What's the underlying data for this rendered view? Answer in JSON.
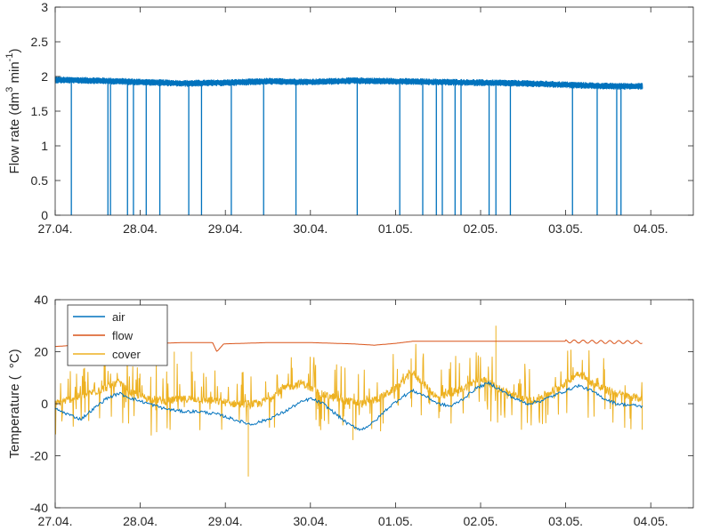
{
  "chart_data": [
    {
      "type": "line",
      "ylabel": "Flow rate (dm",
      "ylabel_sup1": "3",
      "ylabel_mid": " min",
      "ylabel_sup2": "-1",
      "ylabel_end": ")",
      "ylim": [
        0,
        3
      ],
      "yticks": [
        "0",
        "0.5",
        "1",
        "1.5",
        "2",
        "2.5",
        "3"
      ],
      "xlim": [
        0,
        7.5
      ],
      "xticks": [
        "27.04.",
        "28.04.",
        "29.04.",
        "30.04.",
        "01.05.",
        "02.05.",
        "03.05.",
        "04.05."
      ],
      "grid": false,
      "series": [
        {
          "color": "#0072BD",
          "baseline": [
            [
              0,
              1.95
            ],
            [
              0.5,
              1.94
            ],
            [
              1.0,
              1.92
            ],
            [
              1.5,
              1.9
            ],
            [
              2.0,
              1.91
            ],
            [
              2.5,
              1.93
            ],
            [
              3.0,
              1.92
            ],
            [
              3.5,
              1.94
            ],
            [
              4.0,
              1.93
            ],
            [
              4.5,
              1.92
            ],
            [
              5.0,
              1.91
            ],
            [
              5.5,
              1.9
            ],
            [
              6.0,
              1.88
            ],
            [
              6.5,
              1.86
            ],
            [
              6.9,
              1.86
            ]
          ],
          "dropouts": [
            0.19,
            0.62,
            0.65,
            0.85,
            0.92,
            1.07,
            1.23,
            1.57,
            1.72,
            2.07,
            2.45,
            2.83,
            3.55,
            4.05,
            4.32,
            4.48,
            4.55,
            4.7,
            4.77,
            5.1,
            5.18,
            5.35,
            6.08,
            6.37,
            6.6,
            6.65
          ]
        }
      ]
    },
    {
      "type": "line",
      "ylabel": "Temperature (",
      "ylabel_unit": "°C)",
      "ylim": [
        -40,
        40
      ],
      "yticks": [
        "-40",
        "-20",
        "0",
        "20",
        "40"
      ],
      "xlim": [
        0,
        7.5
      ],
      "xticks": [
        "27.04.",
        "28.04.",
        "29.04.",
        "30.04.",
        "01.05.",
        "02.05.",
        "03.05.",
        "04.05."
      ],
      "grid": false,
      "legend_position": "top-left",
      "series": [
        {
          "name": "air",
          "color": "#0072BD",
          "points": [
            [
              0,
              -2
            ],
            [
              0.15,
              -4
            ],
            [
              0.3,
              -6
            ],
            [
              0.45,
              -2
            ],
            [
              0.6,
              2
            ],
            [
              0.75,
              4
            ],
            [
              0.9,
              2
            ],
            [
              1.1,
              0
            ],
            [
              1.3,
              -2
            ],
            [
              1.5,
              -3
            ],
            [
              1.7,
              -3
            ],
            [
              1.9,
              -4
            ],
            [
              2.1,
              -6
            ],
            [
              2.3,
              -8
            ],
            [
              2.5,
              -6
            ],
            [
              2.7,
              -3
            ],
            [
              2.85,
              0
            ],
            [
              3.0,
              2
            ],
            [
              3.15,
              0
            ],
            [
              3.3,
              -4
            ],
            [
              3.45,
              -8
            ],
            [
              3.6,
              -10
            ],
            [
              3.75,
              -7
            ],
            [
              3.9,
              -2
            ],
            [
              4.05,
              2
            ],
            [
              4.2,
              5
            ],
            [
              4.35,
              3
            ],
            [
              4.5,
              0
            ],
            [
              4.65,
              -1
            ],
            [
              4.8,
              2
            ],
            [
              4.95,
              6
            ],
            [
              5.1,
              8
            ],
            [
              5.25,
              5
            ],
            [
              5.4,
              2
            ],
            [
              5.55,
              0
            ],
            [
              5.7,
              1
            ],
            [
              5.85,
              3
            ],
            [
              6.0,
              5
            ],
            [
              6.15,
              7
            ],
            [
              6.3,
              5
            ],
            [
              6.45,
              2
            ],
            [
              6.6,
              0
            ],
            [
              6.75,
              -0.5
            ],
            [
              6.9,
              -1
            ]
          ]
        },
        {
          "name": "flow",
          "color": "#D95319",
          "points": [
            [
              0,
              22
            ],
            [
              0.5,
              23
            ],
            [
              1.0,
              23
            ],
            [
              1.5,
              23.5
            ],
            [
              1.85,
              23.5
            ],
            [
              1.9,
              20
            ],
            [
              1.98,
              23
            ],
            [
              2.5,
              23.5
            ],
            [
              3.0,
              23.5
            ],
            [
              3.5,
              23
            ],
            [
              3.75,
              22.5
            ],
            [
              4.0,
              23.2
            ],
            [
              4.2,
              24
            ],
            [
              4.5,
              24
            ],
            [
              5.0,
              24
            ],
            [
              5.5,
              24
            ],
            [
              6.0,
              24
            ],
            [
              6.5,
              23.7
            ],
            [
              6.9,
              23.7
            ]
          ]
        },
        {
          "name": "cover",
          "color": "#EDB120",
          "points": [
            [
              0,
              0
            ],
            [
              0.2,
              2
            ],
            [
              0.5,
              5
            ],
            [
              0.75,
              8
            ],
            [
              0.9,
              4
            ],
            [
              1.1,
              2
            ],
            [
              1.3,
              1
            ],
            [
              1.6,
              2
            ],
            [
              1.9,
              1
            ],
            [
              2.1,
              0
            ],
            [
              2.4,
              0
            ],
            [
              2.7,
              6
            ],
            [
              2.9,
              8
            ],
            [
              3.1,
              4
            ],
            [
              3.3,
              2
            ],
            [
              3.6,
              0
            ],
            [
              3.8,
              2
            ],
            [
              4.0,
              6
            ],
            [
              4.2,
              12
            ],
            [
              4.35,
              7
            ],
            [
              4.5,
              2
            ],
            [
              4.8,
              6
            ],
            [
              5.0,
              10
            ],
            [
              5.2,
              6
            ],
            [
              5.4,
              3
            ],
            [
              5.6,
              1
            ],
            [
              5.8,
              4
            ],
            [
              6.0,
              8
            ],
            [
              6.15,
              12
            ],
            [
              6.3,
              8
            ],
            [
              6.5,
              5
            ],
            [
              6.7,
              3
            ],
            [
              6.9,
              2
            ]
          ],
          "noise_amplitude": 12,
          "extremes": [
            [
              2.27,
              -28
            ],
            [
              5.18,
              30
            ],
            [
              1.4,
              20
            ],
            [
              1.6,
              20
            ],
            [
              3.5,
              -14
            ],
            [
              6.9,
              -10
            ]
          ]
        }
      ]
    }
  ]
}
